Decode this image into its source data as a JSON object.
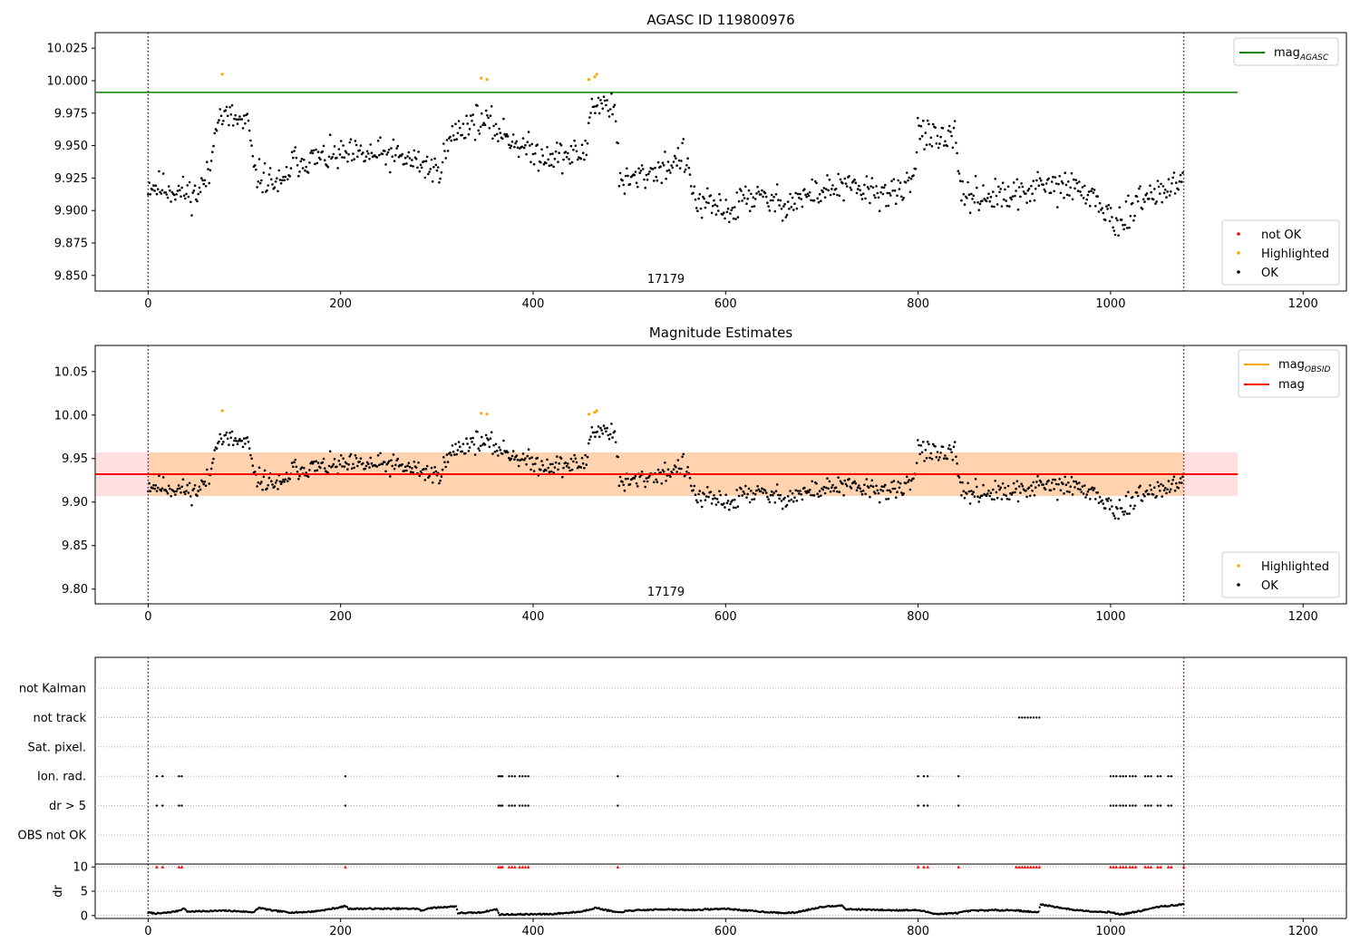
{
  "chart_data": [
    {
      "type": "scatter",
      "title": "AGASC ID 119800976",
      "xlim": [
        -55,
        1245
      ],
      "ylim": [
        9.838,
        10.037
      ],
      "xticks": [
        0,
        200,
        400,
        600,
        800,
        1000,
        1200
      ],
      "yticks": [
        9.85,
        9.875,
        9.9,
        9.925,
        9.95,
        9.975,
        10.0,
        10.025
      ],
      "ytick_labels": [
        "9.850",
        "9.875",
        "9.900",
        "9.925",
        "9.950",
        "9.975",
        "10.000",
        "10.025"
      ],
      "vlines": [
        0,
        1076
      ],
      "obsid_label": "17179",
      "obsid_label_x": 538,
      "hline": {
        "name": "mag",
        "sub": "AGASC",
        "value": 9.991,
        "x_end": 1132,
        "color": "#008000"
      },
      "legend_lines": [
        {
          "label": "mag",
          "sub": "AGASC",
          "color": "#008000"
        }
      ],
      "legend_points": [
        {
          "label": "not OK",
          "color": "#ff0000"
        },
        {
          "label": "Highlighted",
          "color": "#ffa500"
        },
        {
          "label": "OK",
          "color": "#000000"
        }
      ],
      "series": [
        {
          "name": "OK",
          "color": "#000000",
          "segments": [
            [
              0,
              9.92
            ],
            [
              50,
              9.912
            ],
            [
              65,
              9.93
            ],
            [
              70,
              9.972
            ],
            [
              85,
              9.972
            ],
            [
              105,
              9.965
            ],
            [
              110,
              9.928
            ],
            [
              130,
              9.922
            ],
            [
              140,
              9.918
            ],
            [
              150,
              9.938
            ],
            [
              200,
              9.942
            ],
            [
              250,
              9.943
            ],
            [
              285,
              9.936
            ],
            [
              300,
              9.93
            ],
            [
              318,
              9.96
            ],
            [
              340,
              9.97
            ],
            [
              355,
              9.966
            ],
            [
              380,
              9.954
            ],
            [
              400,
              9.944
            ],
            [
              430,
              9.942
            ],
            [
              455,
              9.944
            ],
            [
              460,
              9.982
            ],
            [
              485,
              9.982
            ],
            [
              490,
              9.92
            ],
            [
              550,
              9.938
            ],
            [
              555,
              9.945
            ],
            [
              570,
              9.905
            ],
            [
              610,
              9.9
            ],
            [
              620,
              9.912
            ],
            [
              660,
              9.905
            ],
            [
              700,
              9.915
            ],
            [
              720,
              9.918
            ],
            [
              780,
              9.912
            ],
            [
              795,
              9.925
            ],
            [
              800,
              9.965
            ],
            [
              820,
              9.952
            ],
            [
              840,
              9.955
            ],
            [
              845,
              9.912
            ],
            [
              900,
              9.91
            ],
            [
              920,
              9.918
            ],
            [
              960,
              9.918
            ],
            [
              980,
              9.912
            ],
            [
              1005,
              9.89
            ],
            [
              1015,
              9.885
            ],
            [
              1020,
              9.905
            ],
            [
              1075,
              9.922
            ]
          ],
          "seed": 11,
          "count": 950,
          "spread": 0.018
        },
        {
          "name": "Highlighted",
          "color": "#ffa500",
          "x": [
            77,
            346,
            352,
            458,
            464,
            466
          ],
          "y": [
            10.005,
            10.002,
            10.001,
            10.001,
            10.003,
            10.005
          ]
        }
      ]
    },
    {
      "type": "scatter",
      "title": "Magnitude Estimates",
      "xlim": [
        -55,
        1245
      ],
      "ylim": [
        9.783,
        10.08
      ],
      "xticks": [
        0,
        200,
        400,
        600,
        800,
        1000,
        1200
      ],
      "yticks": [
        9.8,
        9.85,
        9.9,
        9.95,
        10.0,
        10.05
      ],
      "ytick_labels": [
        "9.80",
        "9.85",
        "9.90",
        "9.95",
        "10.00",
        "10.05"
      ],
      "vlines": [
        0,
        1076
      ],
      "obsid_label": "17179",
      "obsid_label_x": 538,
      "mag_line": {
        "value": 9.932,
        "x_end": 1132,
        "color": "#ff0000"
      },
      "mag_band": {
        "low": 9.907,
        "high": 9.957,
        "x_end": 1132
      },
      "obsid_band": {
        "low": 9.907,
        "high": 9.957,
        "x_start": 0,
        "x_end": 1076
      },
      "legend_lines": [
        {
          "label": "mag",
          "sub": "OBSID",
          "color": "#ffa500"
        },
        {
          "label": "mag",
          "sub": "",
          "color": "#ff0000"
        }
      ],
      "legend_points": [
        {
          "label": "Highlighted",
          "color": "#ffa500"
        },
        {
          "label": "OK",
          "color": "#000000"
        }
      ],
      "series": [
        {
          "name": "OK",
          "color": "#000000",
          "same_as": 0
        },
        {
          "name": "Highlighted",
          "color": "#ffa500",
          "x": [
            77,
            346,
            352,
            458,
            464,
            466
          ],
          "y": [
            10.005,
            10.002,
            10.001,
            10.001,
            10.003,
            10.005
          ]
        }
      ]
    },
    {
      "type": "scatter",
      "xlim": [
        -55,
        1245
      ],
      "xticks": [
        0,
        200,
        400,
        600,
        800,
        1000,
        1200
      ],
      "vlines": [
        0,
        1076
      ],
      "flag_rows": [
        "not Kalman",
        "not track",
        "Sat. pixel.",
        "Ion. rad.",
        "dr > 5",
        "OBS not OK"
      ],
      "flags": {
        "not track": [
          905,
          908,
          911,
          914,
          917,
          920,
          923,
          926
        ],
        "Ion. rad.": [
          9,
          15,
          32,
          35,
          205,
          364,
          366,
          368,
          375,
          378,
          381,
          386,
          389,
          392,
          395,
          488,
          800,
          806,
          810,
          842,
          1000,
          1003,
          1006,
          1010,
          1013,
          1016,
          1020,
          1023,
          1026,
          1036,
          1039,
          1042,
          1049,
          1052,
          1060,
          1063
        ],
        "dr > 5": [
          9,
          15,
          32,
          35,
          205,
          364,
          366,
          368,
          375,
          378,
          381,
          386,
          389,
          392,
          395,
          488,
          800,
          806,
          810,
          842,
          1000,
          1003,
          1006,
          1010,
          1013,
          1016,
          1020,
          1023,
          1026,
          1036,
          1039,
          1042,
          1049,
          1052,
          1060,
          1063
        ]
      },
      "dr_label": "dr",
      "dr_yticks": [
        0,
        5,
        10
      ],
      "dr_ylim": [
        -0.6,
        10.6
      ],
      "dr_clip": 10,
      "dr_over_x": [
        9,
        15,
        32,
        35,
        205,
        364,
        366,
        368,
        375,
        378,
        381,
        386,
        389,
        392,
        395,
        488,
        800,
        806,
        810,
        842,
        902,
        905,
        908,
        911,
        914,
        917,
        920,
        923,
        926,
        1000,
        1003,
        1006,
        1010,
        1013,
        1016,
        1020,
        1023,
        1026,
        1036,
        1039,
        1042,
        1049,
        1052,
        1060,
        1063,
        1076
      ],
      "dr_curve": [
        [
          0,
          0.6
        ],
        [
          10,
          0.4
        ],
        [
          20,
          0.6
        ],
        [
          30,
          0.9
        ],
        [
          38,
          1.5
        ],
        [
          40,
          0.8
        ],
        [
          80,
          1.0
        ],
        [
          110,
          0.7
        ],
        [
          115,
          1.6
        ],
        [
          130,
          1.0
        ],
        [
          150,
          0.6
        ],
        [
          170,
          0.8
        ],
        [
          185,
          1.2
        ],
        [
          200,
          1.7
        ],
        [
          205,
          2.0
        ],
        [
          208,
          1.4
        ],
        [
          280,
          1.4
        ],
        [
          285,
          0.9
        ],
        [
          290,
          1.5
        ],
        [
          320,
          1.9
        ],
        [
          322,
          0.5
        ],
        [
          345,
          0.6
        ],
        [
          362,
          1.3
        ],
        [
          365,
          0.2
        ],
        [
          420,
          0.3
        ],
        [
          450,
          0.8
        ],
        [
          465,
          1.6
        ],
        [
          488,
          0.6
        ],
        [
          500,
          1.0
        ],
        [
          540,
          1.3
        ],
        [
          560,
          1.1
        ],
        [
          600,
          1.4
        ],
        [
          630,
          0.9
        ],
        [
          660,
          0.5
        ],
        [
          672,
          0.6
        ],
        [
          700,
          1.8
        ],
        [
          720,
          2.1
        ],
        [
          725,
          1.3
        ],
        [
          770,
          1.1
        ],
        [
          800,
          1.1
        ],
        [
          820,
          0.3
        ],
        [
          840,
          0.5
        ],
        [
          855,
          1.0
        ],
        [
          880,
          1.1
        ],
        [
          900,
          1.1
        ],
        [
          925,
          0.6
        ],
        [
          927,
          2.3
        ],
        [
          960,
          1.2
        ],
        [
          985,
          0.8
        ],
        [
          1000,
          0.7
        ],
        [
          1010,
          0.2
        ],
        [
          1030,
          0.9
        ],
        [
          1050,
          1.8
        ],
        [
          1076,
          2.3
        ]
      ]
    }
  ]
}
